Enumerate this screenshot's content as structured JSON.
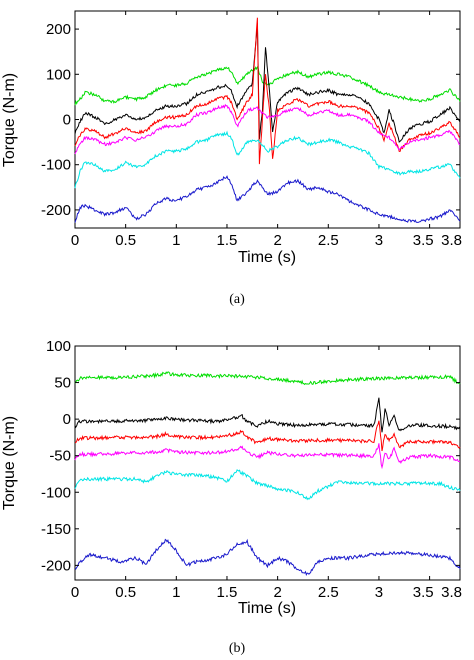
{
  "chart_data": [
    {
      "type": "line",
      "caption": "(a)",
      "xlabel": "Time (s)",
      "ylabel": "Torque (N-m)",
      "xlim": [
        0,
        3.8
      ],
      "ylim": [
        -240,
        240
      ],
      "xticks": [
        0,
        0.5,
        1,
        1.5,
        2,
        2.5,
        3,
        3.5,
        3.8
      ],
      "xtick_labels": [
        "0",
        "0.5",
        "1",
        "1.5",
        "2",
        "2.5",
        "3",
        "3.5",
        "3.8"
      ],
      "yticks": [
        200,
        100,
        0,
        -100,
        -200
      ],
      "ytick_labels": [
        "200",
        "100",
        "0",
        "-100",
        "-200"
      ],
      "grid": false,
      "series": [
        {
          "color": "#00dd00",
          "x": [
            0,
            0.05,
            0.1,
            0.2,
            0.3,
            0.4,
            0.5,
            0.6,
            0.7,
            0.8,
            0.9,
            1.0,
            1.1,
            1.2,
            1.3,
            1.4,
            1.5,
            1.55,
            1.6,
            1.7,
            1.75,
            1.8,
            1.85,
            1.9,
            2.0,
            2.1,
            2.2,
            2.3,
            2.4,
            2.5,
            2.6,
            2.7,
            2.8,
            2.9,
            3.0,
            3.1,
            3.2,
            3.3,
            3.4,
            3.5,
            3.6,
            3.7,
            3.8
          ],
          "y": [
            35,
            45,
            60,
            55,
            40,
            40,
            50,
            45,
            50,
            65,
            75,
            75,
            80,
            95,
            100,
            110,
            115,
            105,
            80,
            100,
            110,
            115,
            85,
            75,
            90,
            100,
            105,
            95,
            100,
            105,
            100,
            95,
            85,
            75,
            60,
            55,
            50,
            45,
            40,
            45,
            55,
            65,
            40
          ]
        },
        {
          "color": "#000000",
          "x": [
            0,
            0.05,
            0.1,
            0.2,
            0.3,
            0.4,
            0.5,
            0.6,
            0.7,
            0.8,
            0.9,
            1.0,
            1.1,
            1.2,
            1.3,
            1.4,
            1.5,
            1.55,
            1.6,
            1.7,
            1.75,
            1.8,
            1.82,
            1.85,
            1.88,
            1.92,
            1.95,
            2.0,
            2.1,
            2.2,
            2.3,
            2.4,
            2.5,
            2.6,
            2.7,
            2.8,
            2.9,
            3.0,
            3.05,
            3.1,
            3.15,
            3.2,
            3.3,
            3.4,
            3.5,
            3.6,
            3.7,
            3.8
          ],
          "y": [
            -30,
            -5,
            15,
            5,
            -10,
            0,
            10,
            0,
            5,
            20,
            30,
            30,
            35,
            55,
            60,
            70,
            75,
            60,
            30,
            65,
            80,
            210,
            -40,
            20,
            160,
            60,
            -30,
            40,
            60,
            70,
            55,
            60,
            65,
            55,
            55,
            50,
            35,
            0,
            -30,
            20,
            -10,
            -50,
            -20,
            -10,
            -5,
            10,
            25,
            -5
          ]
        },
        {
          "color": "#ff0000",
          "x": [
            0,
            0.05,
            0.1,
            0.2,
            0.3,
            0.4,
            0.5,
            0.6,
            0.7,
            0.8,
            0.9,
            1.0,
            1.1,
            1.2,
            1.3,
            1.4,
            1.5,
            1.55,
            1.6,
            1.7,
            1.75,
            1.8,
            1.82,
            1.85,
            1.88,
            1.92,
            1.95,
            2.0,
            2.1,
            2.2,
            2.3,
            2.4,
            2.5,
            2.6,
            2.7,
            2.8,
            2.9,
            3.0,
            3.05,
            3.1,
            3.15,
            3.2,
            3.3,
            3.4,
            3.5,
            3.6,
            3.7,
            3.8
          ],
          "y": [
            -55,
            -35,
            -20,
            -25,
            -40,
            -30,
            -20,
            -30,
            -25,
            -5,
            5,
            5,
            10,
            30,
            35,
            45,
            50,
            35,
            0,
            40,
            55,
            225,
            -100,
            0,
            100,
            20,
            -90,
            20,
            35,
            45,
            30,
            35,
            40,
            30,
            30,
            25,
            15,
            -20,
            -45,
            -10,
            -35,
            -70,
            -45,
            -35,
            -30,
            -20,
            -5,
            -40
          ]
        },
        {
          "color": "#ff00ff",
          "x": [
            0,
            0.05,
            0.1,
            0.2,
            0.3,
            0.4,
            0.5,
            0.6,
            0.7,
            0.8,
            0.9,
            1.0,
            1.1,
            1.2,
            1.3,
            1.4,
            1.5,
            1.55,
            1.6,
            1.7,
            1.8,
            1.9,
            2.0,
            2.1,
            2.2,
            2.3,
            2.4,
            2.5,
            2.6,
            2.7,
            2.8,
            2.9,
            3.0,
            3.1,
            3.2,
            3.3,
            3.4,
            3.5,
            3.6,
            3.7,
            3.8
          ],
          "y": [
            -75,
            -55,
            -40,
            -45,
            -55,
            -50,
            -40,
            -45,
            -40,
            -25,
            -15,
            -15,
            -10,
            10,
            15,
            25,
            30,
            15,
            -15,
            20,
            25,
            5,
            10,
            20,
            25,
            10,
            15,
            20,
            10,
            10,
            5,
            -5,
            -30,
            -40,
            -65,
            -50,
            -45,
            -40,
            -35,
            -25,
            -55
          ]
        },
        {
          "color": "#00e5e5",
          "x": [
            0,
            0.05,
            0.1,
            0.2,
            0.3,
            0.4,
            0.5,
            0.6,
            0.7,
            0.8,
            0.9,
            1.0,
            1.1,
            1.2,
            1.3,
            1.4,
            1.5,
            1.55,
            1.6,
            1.7,
            1.8,
            1.9,
            2.0,
            2.1,
            2.2,
            2.3,
            2.4,
            2.5,
            2.6,
            2.7,
            2.8,
            2.9,
            3.0,
            3.1,
            3.2,
            3.3,
            3.4,
            3.5,
            3.6,
            3.7,
            3.8
          ],
          "y": [
            -150,
            -115,
            -95,
            -100,
            -115,
            -110,
            -95,
            -105,
            -100,
            -80,
            -70,
            -70,
            -65,
            -50,
            -45,
            -35,
            -30,
            -45,
            -80,
            -50,
            -45,
            -70,
            -60,
            -45,
            -40,
            -55,
            -50,
            -45,
            -50,
            -60,
            -65,
            -75,
            -105,
            -110,
            -120,
            -115,
            -115,
            -110,
            -105,
            -100,
            -130
          ]
        },
        {
          "color": "#1a1acc",
          "x": [
            0,
            0.05,
            0.1,
            0.2,
            0.3,
            0.4,
            0.5,
            0.6,
            0.7,
            0.8,
            0.9,
            1.0,
            1.1,
            1.2,
            1.3,
            1.4,
            1.5,
            1.55,
            1.6,
            1.7,
            1.8,
            1.9,
            2.0,
            2.1,
            2.2,
            2.3,
            2.4,
            2.5,
            2.6,
            2.7,
            2.8,
            2.9,
            3.0,
            3.1,
            3.2,
            3.3,
            3.4,
            3.5,
            3.6,
            3.7,
            3.8
          ],
          "y": [
            -225,
            -195,
            -190,
            -200,
            -210,
            -205,
            -195,
            -220,
            -210,
            -185,
            -175,
            -180,
            -170,
            -155,
            -150,
            -140,
            -125,
            -145,
            -180,
            -160,
            -135,
            -165,
            -160,
            -140,
            -135,
            -155,
            -150,
            -160,
            -165,
            -180,
            -190,
            -200,
            -210,
            -215,
            -220,
            -225,
            -225,
            -220,
            -215,
            -200,
            -225
          ]
        }
      ]
    },
    {
      "type": "line",
      "caption": "(b)",
      "xlabel": "Time (s)",
      "ylabel": "Torque (N-m)",
      "xlim": [
        0,
        3.8
      ],
      "ylim": [
        -220,
        100
      ],
      "xticks": [
        0,
        0.5,
        1,
        1.5,
        2,
        2.5,
        3,
        3.5,
        3.8
      ],
      "xtick_labels": [
        "0",
        "0.5",
        "1",
        "1.5",
        "2",
        "2.5",
        "3",
        "3.5",
        "3.8"
      ],
      "yticks": [
        100,
        50,
        0,
        -50,
        -100,
        -150,
        -200
      ],
      "ytick_labels": [
        "100",
        "50",
        "0",
        "-50",
        "-100",
        "-150",
        "-200"
      ],
      "grid": false,
      "series": [
        {
          "color": "#00dd00",
          "x": [
            0,
            0.05,
            0.2,
            0.4,
            0.6,
            0.8,
            0.9,
            1.0,
            1.2,
            1.4,
            1.6,
            1.8,
            2.0,
            2.2,
            2.3,
            2.5,
            2.7,
            2.9,
            3.1,
            3.3,
            3.5,
            3.7,
            3.8
          ],
          "y": [
            48,
            56,
            57,
            57,
            58,
            60,
            63,
            60,
            60,
            59,
            59,
            57,
            54,
            51,
            49,
            52,
            54,
            55,
            56,
            57,
            57,
            58,
            48
          ]
        },
        {
          "color": "#000000",
          "x": [
            0,
            0.05,
            0.2,
            0.4,
            0.6,
            0.8,
            0.9,
            1.0,
            1.2,
            1.4,
            1.6,
            1.65,
            1.7,
            1.8,
            1.9,
            2.0,
            2.2,
            2.4,
            2.6,
            2.8,
            2.95,
            3.0,
            3.03,
            3.06,
            3.1,
            3.15,
            3.2,
            3.3,
            3.4,
            3.5,
            3.7,
            3.8
          ],
          "y": [
            -10,
            -3,
            -3,
            -3,
            -2,
            -1,
            2,
            -1,
            -2,
            -3,
            2,
            4,
            -3,
            -10,
            -3,
            -6,
            -9,
            -7,
            -7,
            -8,
            -9,
            28,
            -20,
            15,
            -8,
            5,
            -15,
            -9,
            -8,
            -9,
            -10,
            -14
          ]
        },
        {
          "color": "#ff0000",
          "x": [
            0,
            0.05,
            0.2,
            0.4,
            0.6,
            0.8,
            0.9,
            1.0,
            1.2,
            1.4,
            1.6,
            1.65,
            1.7,
            1.8,
            1.9,
            2.0,
            2.2,
            2.4,
            2.6,
            2.8,
            2.95,
            3.0,
            3.03,
            3.06,
            3.1,
            3.15,
            3.2,
            3.3,
            3.4,
            3.5,
            3.7,
            3.8
          ],
          "y": [
            -32,
            -26,
            -26,
            -25,
            -25,
            -24,
            -20,
            -24,
            -25,
            -25,
            -20,
            -17,
            -25,
            -33,
            -26,
            -28,
            -30,
            -29,
            -29,
            -30,
            -30,
            0,
            -42,
            -20,
            -30,
            -22,
            -38,
            -31,
            -31,
            -31,
            -32,
            -38
          ]
        },
        {
          "color": "#ff00ff",
          "x": [
            0,
            0.05,
            0.2,
            0.4,
            0.6,
            0.8,
            0.9,
            1.0,
            1.2,
            1.4,
            1.6,
            1.65,
            1.7,
            1.8,
            1.9,
            2.0,
            2.2,
            2.4,
            2.6,
            2.8,
            2.95,
            3.0,
            3.03,
            3.06,
            3.1,
            3.15,
            3.2,
            3.3,
            3.4,
            3.5,
            3.7,
            3.8
          ],
          "y": [
            -55,
            -48,
            -48,
            -47,
            -46,
            -45,
            -42,
            -45,
            -46,
            -46,
            -42,
            -38,
            -45,
            -52,
            -46,
            -48,
            -50,
            -49,
            -49,
            -50,
            -50,
            -35,
            -68,
            -45,
            -55,
            -40,
            -60,
            -52,
            -51,
            -50,
            -52,
            -58
          ]
        },
        {
          "color": "#00e5e5",
          "x": [
            0,
            0.05,
            0.2,
            0.4,
            0.6,
            0.7,
            0.8,
            0.9,
            1.0,
            1.2,
            1.4,
            1.5,
            1.6,
            1.7,
            1.8,
            2.0,
            2.2,
            2.3,
            2.4,
            2.6,
            2.8,
            3.0,
            3.2,
            3.4,
            3.6,
            3.8
          ],
          "y": [
            -95,
            -82,
            -82,
            -82,
            -82,
            -86,
            -78,
            -72,
            -76,
            -76,
            -80,
            -85,
            -70,
            -78,
            -88,
            -95,
            -100,
            -110,
            -98,
            -86,
            -88,
            -88,
            -88,
            -88,
            -88,
            -98
          ]
        },
        {
          "color": "#1a1acc",
          "x": [
            0,
            0.05,
            0.15,
            0.3,
            0.45,
            0.6,
            0.7,
            0.8,
            0.9,
            1.0,
            1.1,
            1.2,
            1.4,
            1.5,
            1.6,
            1.7,
            1.8,
            1.9,
            2.0,
            2.1,
            2.2,
            2.3,
            2.4,
            2.5,
            2.7,
            2.9,
            3.1,
            3.3,
            3.5,
            3.7,
            3.8
          ],
          "y": [
            -205,
            -195,
            -185,
            -190,
            -195,
            -190,
            -198,
            -180,
            -165,
            -180,
            -200,
            -195,
            -190,
            -185,
            -170,
            -168,
            -190,
            -200,
            -190,
            -195,
            -205,
            -212,
            -195,
            -190,
            -190,
            -186,
            -183,
            -183,
            -186,
            -190,
            -205
          ]
        }
      ]
    }
  ]
}
